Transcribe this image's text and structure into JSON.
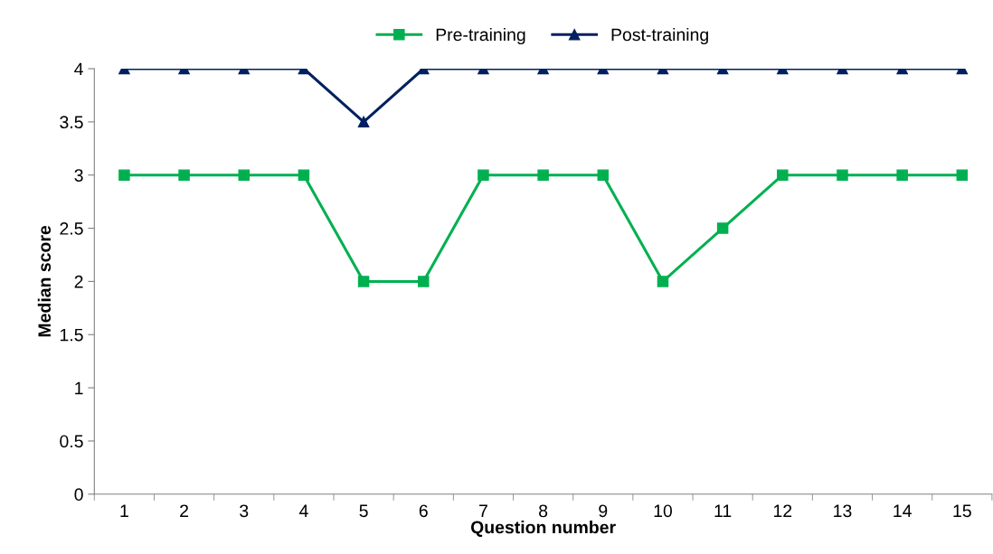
{
  "chart_data": {
    "type": "line",
    "xlabel": "Question number",
    "ylabel": "Median score",
    "categories": [
      "1",
      "2",
      "3",
      "4",
      "5",
      "6",
      "7",
      "8",
      "9",
      "10",
      "11",
      "12",
      "13",
      "14",
      "15"
    ],
    "series": [
      {
        "name": "Pre-training",
        "color": "#00b050",
        "marker": "square",
        "values": [
          3,
          3,
          3,
          3,
          2,
          2,
          3,
          3,
          3,
          2,
          2.5,
          3,
          3,
          3,
          3
        ]
      },
      {
        "name": "Post-training",
        "color": "#002060",
        "marker": "triangle",
        "values": [
          4,
          4,
          4,
          4,
          3.5,
          4,
          4,
          4,
          4,
          4,
          4,
          4,
          4,
          4,
          4
        ]
      }
    ],
    "ylim": [
      0,
      4
    ],
    "yticks": [
      0,
      0.5,
      1,
      1.5,
      2,
      2.5,
      3,
      3.5,
      4
    ],
    "grid": false,
    "legend": "top",
    "line_style": "solid"
  }
}
